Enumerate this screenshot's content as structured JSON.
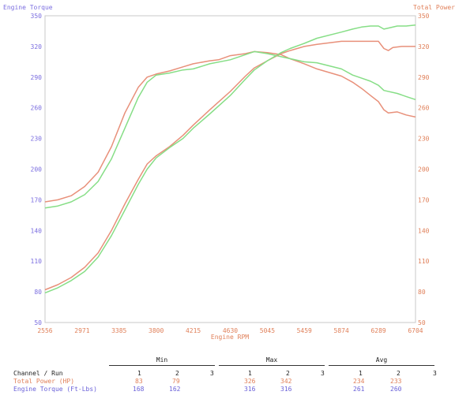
{
  "chart_data": {
    "type": "line",
    "xlabel": "Engine RPM",
    "ylabel_left": "Engine Torque",
    "ylabel_right": "Total Power",
    "xlim": [
      2556,
      6704
    ],
    "ylim_left": [
      50,
      350
    ],
    "ylim_right": [
      50,
      350
    ],
    "x_ticks": [
      "2556",
      "2971",
      "3385",
      "3800",
      "4215",
      "4630",
      "5045",
      "5459",
      "5874",
      "6289",
      "6704"
    ],
    "y_ticks": [
      "50",
      "80",
      "110",
      "140",
      "170",
      "200",
      "230",
      "260",
      "290",
      "320",
      "350"
    ],
    "grid": false,
    "colors": {
      "orange": "#e8907a",
      "green": "#86de86",
      "axis_left": "#7b6ee0",
      "axis_right": "#e0805a"
    },
    "series": [
      {
        "color": "orange",
        "points": [
          [
            2556,
            168
          ],
          [
            2700,
            170
          ],
          [
            2850,
            174
          ],
          [
            3000,
            183
          ],
          [
            3150,
            197
          ],
          [
            3300,
            222
          ],
          [
            3450,
            255
          ],
          [
            3600,
            280
          ],
          [
            3700,
            290
          ],
          [
            3800,
            293
          ],
          [
            3950,
            296
          ],
          [
            4100,
            300
          ],
          [
            4215,
            303
          ],
          [
            4400,
            306
          ],
          [
            4500,
            307
          ],
          [
            4630,
            311
          ],
          [
            4800,
            313
          ],
          [
            4900,
            315
          ],
          [
            5045,
            314
          ],
          [
            5200,
            312
          ],
          [
            5300,
            308
          ],
          [
            5459,
            303
          ],
          [
            5600,
            298
          ],
          [
            5874,
            291
          ],
          [
            6000,
            285
          ],
          [
            6100,
            279
          ],
          [
            6200,
            272
          ],
          [
            6289,
            266
          ],
          [
            6350,
            258
          ],
          [
            6400,
            255
          ],
          [
            6500,
            256
          ],
          [
            6600,
            253
          ],
          [
            6704,
            251
          ]
        ]
      },
      {
        "color": "green",
        "points": [
          [
            2556,
            162
          ],
          [
            2700,
            164
          ],
          [
            2850,
            168
          ],
          [
            3000,
            175
          ],
          [
            3150,
            188
          ],
          [
            3300,
            210
          ],
          [
            3450,
            240
          ],
          [
            3600,
            270
          ],
          [
            3700,
            285
          ],
          [
            3800,
            292
          ],
          [
            3950,
            294
          ],
          [
            4100,
            297
          ],
          [
            4215,
            298
          ],
          [
            4400,
            303
          ],
          [
            4630,
            307
          ],
          [
            4800,
            312
          ],
          [
            4900,
            315
          ],
          [
            5045,
            313
          ],
          [
            5200,
            310
          ],
          [
            5459,
            305
          ],
          [
            5600,
            304
          ],
          [
            5874,
            298
          ],
          [
            6000,
            292
          ],
          [
            6100,
            289
          ],
          [
            6200,
            286
          ],
          [
            6289,
            282
          ],
          [
            6350,
            277
          ],
          [
            6500,
            274
          ],
          [
            6600,
            271
          ],
          [
            6704,
            268
          ]
        ]
      },
      {
        "color": "orange",
        "points": [
          [
            2556,
            82
          ],
          [
            2700,
            87
          ],
          [
            2850,
            94
          ],
          [
            3000,
            104
          ],
          [
            3150,
            118
          ],
          [
            3300,
            140
          ],
          [
            3450,
            166
          ],
          [
            3600,
            190
          ],
          [
            3700,
            205
          ],
          [
            3800,
            213
          ],
          [
            3950,
            222
          ],
          [
            4100,
            233
          ],
          [
            4215,
            243
          ],
          [
            4400,
            258
          ],
          [
            4630,
            276
          ],
          [
            4800,
            291
          ],
          [
            4900,
            299
          ],
          [
            5045,
            306
          ],
          [
            5200,
            313
          ],
          [
            5300,
            316
          ],
          [
            5459,
            320
          ],
          [
            5600,
            322
          ],
          [
            5874,
            325
          ],
          [
            6000,
            325
          ],
          [
            6100,
            325
          ],
          [
            6200,
            325
          ],
          [
            6289,
            325
          ],
          [
            6350,
            318
          ],
          [
            6400,
            316
          ],
          [
            6450,
            319
          ],
          [
            6550,
            320
          ],
          [
            6704,
            320
          ]
        ]
      },
      {
        "color": "green",
        "points": [
          [
            2556,
            79
          ],
          [
            2700,
            84
          ],
          [
            2850,
            91
          ],
          [
            3000,
            100
          ],
          [
            3150,
            114
          ],
          [
            3300,
            135
          ],
          [
            3450,
            160
          ],
          [
            3600,
            185
          ],
          [
            3700,
            200
          ],
          [
            3800,
            211
          ],
          [
            3950,
            221
          ],
          [
            4100,
            230
          ],
          [
            4215,
            240
          ],
          [
            4400,
            254
          ],
          [
            4630,
            272
          ],
          [
            4800,
            288
          ],
          [
            4900,
            297
          ],
          [
            5045,
            306
          ],
          [
            5200,
            314
          ],
          [
            5300,
            318
          ],
          [
            5459,
            323
          ],
          [
            5600,
            328
          ],
          [
            5874,
            334
          ],
          [
            6000,
            337
          ],
          [
            6100,
            339
          ],
          [
            6200,
            340
          ],
          [
            6289,
            340
          ],
          [
            6350,
            337
          ],
          [
            6400,
            338
          ],
          [
            6500,
            340
          ],
          [
            6600,
            340
          ],
          [
            6704,
            341
          ]
        ]
      }
    ]
  },
  "summary": {
    "group_headers": [
      "Min",
      "Max",
      "Avg"
    ],
    "channel_header": "Channel / Run",
    "run_numbers": [
      "1",
      "2",
      "3"
    ],
    "rows": [
      {
        "label": "Total Power (HP)",
        "color": "orange",
        "min": [
          "83",
          "79",
          ""
        ],
        "max": [
          "326",
          "342",
          ""
        ],
        "avg": [
          "234",
          "233",
          ""
        ]
      },
      {
        "label": "Engine Torque (Ft-Lbs)",
        "color": "blue",
        "min": [
          "168",
          "162",
          ""
        ],
        "max": [
          "316",
          "316",
          ""
        ],
        "avg": [
          "261",
          "260",
          ""
        ]
      }
    ]
  }
}
